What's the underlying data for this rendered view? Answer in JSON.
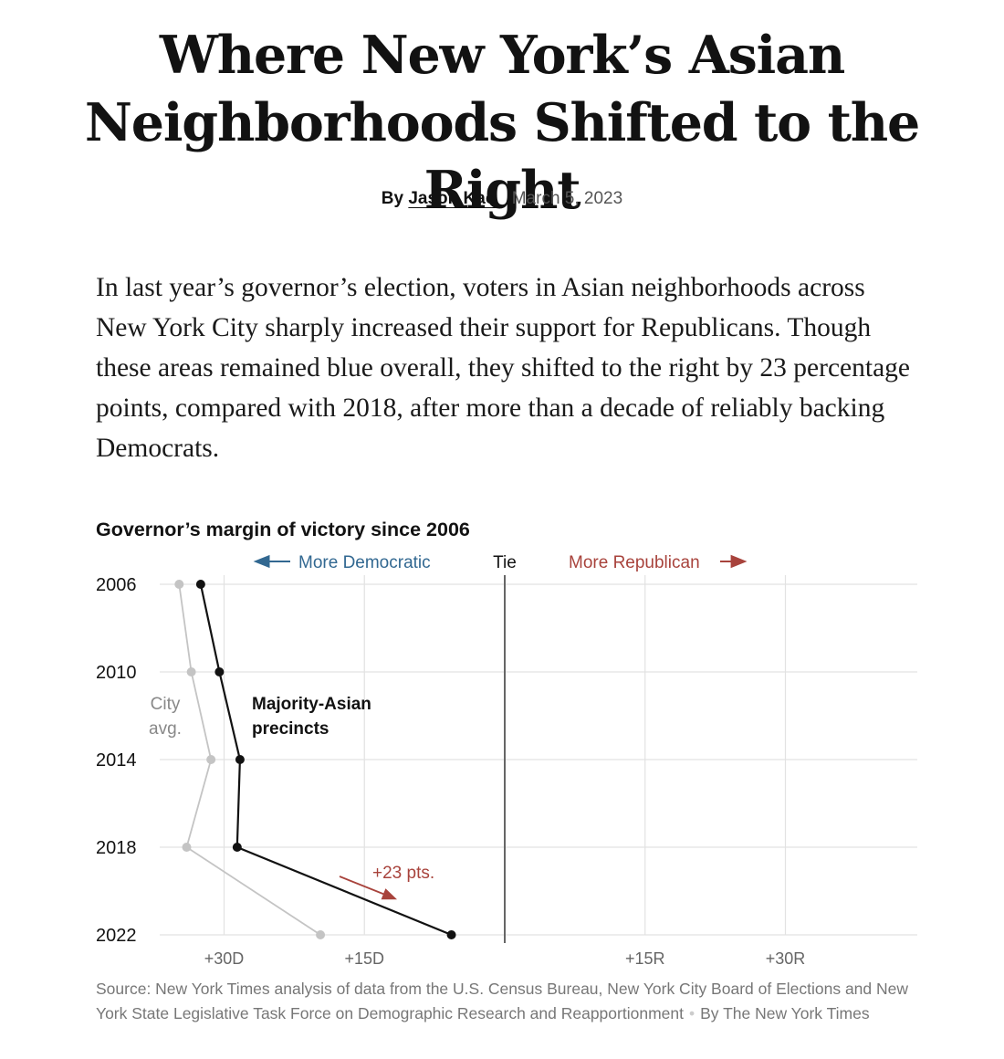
{
  "article": {
    "headline": "Where New York’s Asian Neighborhoods Shifted to the Right",
    "byline_prefix": "By",
    "author": "Jason Kao",
    "date": "March 5, 2023",
    "summary": "In last year’s governor’s election, voters in Asian neighborhoods across New York City sharply increased their support for Republicans. Though these areas remained blue overall, they shifted to the right by 23 percentage points, compared with 2018, after more than a decade of reliably backing Democrats."
  },
  "chart_data": {
    "type": "line",
    "title": "Governor’s margin of victory since 2006",
    "direction_labels": {
      "left": "More Democratic",
      "center": "Tie",
      "right": "More Republican"
    },
    "x_unit": "margin of victory, percentage points (D negative, R positive)",
    "xlim": [
      -45,
      45
    ],
    "x_ticks": [
      {
        "value": -30,
        "label": "+30D"
      },
      {
        "value": -15,
        "label": "+15D"
      },
      {
        "value": 15,
        "label": "+15R"
      },
      {
        "value": 30,
        "label": "+30R"
      }
    ],
    "categories": [
      "2006",
      "2010",
      "2014",
      "2018",
      "2022"
    ],
    "series": [
      {
        "name": "Majority-Asian precincts",
        "color": "#121212",
        "values": [
          -32.5,
          -30.5,
          -28.3,
          -28.6,
          -5.7
        ]
      },
      {
        "name": "City avg.",
        "color": "#c4c4c4",
        "values": [
          -34.8,
          -33.5,
          -31.4,
          -34.0,
          -19.7
        ]
      }
    ],
    "series_labels": {
      "majority_asian": "Majority-Asian precincts",
      "city_avg": "City avg."
    },
    "annotation": {
      "text": "+23 pts.",
      "color": "#a8433c"
    },
    "grid": true,
    "colors": {
      "democratic": "#326891",
      "republican": "#a8433c",
      "tie_line": "#666666",
      "grid": "#e2e2e2"
    }
  },
  "source": {
    "text": "Source: New York Times analysis of data from the U.S. Census Bureau, New York City Board of Elections and New York State Legislative Task Force on Demographic Research and Reapportionment",
    "credit": "By The New York Times"
  }
}
